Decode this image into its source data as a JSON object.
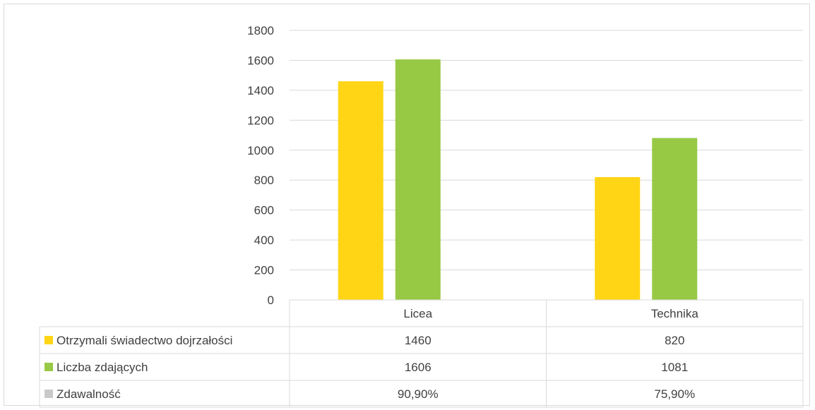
{
  "chart_data": {
    "type": "bar",
    "title": "",
    "xlabel": "",
    "ylabel": "",
    "ylim": [
      0,
      1800
    ],
    "yticks": [
      0,
      200,
      400,
      600,
      800,
      1000,
      1200,
      1400,
      1600,
      1800
    ],
    "ytick_labels": [
      "0",
      "200",
      "400",
      "600",
      "800",
      "1000",
      "1200",
      "1400",
      "1600",
      "1800"
    ],
    "categories": [
      "Licea",
      "Technika"
    ],
    "series": [
      {
        "name": "Otrzymali świadectwo dojrzałości",
        "values": [
          1460,
          820
        ],
        "labels": [
          "1460",
          "820"
        ],
        "color": "#ffd515",
        "plotted": true
      },
      {
        "name": "Liczba zdających",
        "values": [
          1606,
          1081
        ],
        "labels": [
          "1606",
          "1081"
        ],
        "color": "#97c945",
        "plotted": true
      },
      {
        "name": "Zdawalność",
        "values": [
          0.909,
          0.759
        ],
        "labels": [
          "90,90%",
          "75,90%"
        ],
        "color": "#c9c9c9",
        "plotted": true
      }
    ],
    "grid": true,
    "legend": "data-table",
    "gridline_color": "#d9d9d9",
    "text_color": "#404040"
  }
}
